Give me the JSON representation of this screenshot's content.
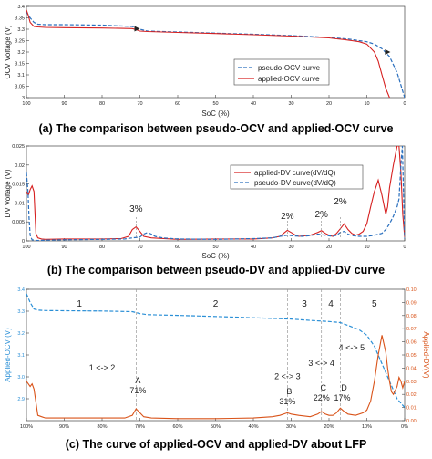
{
  "colors": {
    "applied": "#d62020",
    "pseudo": "#2a6fbe",
    "dv_orange": "#d95319",
    "ocv_blue": "#2a8fd6",
    "zone_line": "#999999",
    "axis": "#333333"
  },
  "captions": {
    "a": "(a) The comparison between pseudo-OCV and applied-OCV curve",
    "b": "(b) The comparison between pseudo-DV and applied-DV curve",
    "c": "(c) The curve of applied-OCV and applied-DV about LFP"
  },
  "chart_data": [
    {
      "id": "a",
      "type": "line",
      "xlabel": "SoC (%)",
      "ylabel": "OCV Voltage (V)",
      "x_reversed": true,
      "xlim": [
        100,
        0
      ],
      "ylim": [
        3.0,
        3.4
      ],
      "xticks": [
        "100",
        "90",
        "80",
        "70",
        "60",
        "50",
        "40",
        "30",
        "20",
        "10",
        "0"
      ],
      "xtick_values": [
        100,
        90,
        80,
        70,
        60,
        50,
        40,
        30,
        20,
        10,
        0
      ],
      "yticks": [
        "3.4",
        "3.35",
        "3.3",
        "3.25",
        "3.2",
        "3.15",
        "3.1",
        "3.05",
        "3"
      ],
      "ytick_values": [
        3.4,
        3.35,
        3.3,
        3.25,
        3.2,
        3.15,
        3.1,
        3.05,
        3.0
      ],
      "legend_position": "bottom-right",
      "series": [
        {
          "name": "pseudo-OCV curve",
          "style": "dashed",
          "color": "#2a6fbe",
          "x": [
            100,
            99,
            98,
            97,
            95,
            90,
            80,
            72,
            70,
            68,
            60,
            50,
            40,
            30,
            25,
            20,
            15,
            10,
            8,
            6,
            4,
            2,
            0
          ],
          "y": [
            3.375,
            3.35,
            3.33,
            3.322,
            3.32,
            3.32,
            3.318,
            3.312,
            3.3,
            3.292,
            3.288,
            3.283,
            3.278,
            3.272,
            3.268,
            3.264,
            3.257,
            3.245,
            3.235,
            3.215,
            3.18,
            3.11,
            3.0
          ]
        },
        {
          "name": "applied-OCV curve",
          "style": "solid",
          "color": "#d62020",
          "x": [
            100,
            99.5,
            99,
            98,
            97,
            95,
            90,
            80,
            72,
            71,
            70,
            68,
            60,
            50,
            40,
            30,
            25,
            20,
            18,
            16,
            14,
            12,
            10,
            8,
            7,
            6,
            5,
            4
          ],
          "y": [
            3.385,
            3.36,
            3.33,
            3.312,
            3.31,
            3.308,
            3.307,
            3.305,
            3.303,
            3.298,
            3.292,
            3.29,
            3.286,
            3.281,
            3.276,
            3.27,
            3.266,
            3.262,
            3.258,
            3.255,
            3.25,
            3.245,
            3.235,
            3.2,
            3.16,
            3.1,
            3.04,
            3.0
          ]
        }
      ]
    },
    {
      "id": "b",
      "type": "line",
      "xlabel": "SoC (%)",
      "ylabel": "DV Voltage (V)",
      "x_reversed": true,
      "xlim": [
        100,
        0
      ],
      "ylim": [
        0,
        0.025
      ],
      "xticks": [
        "100",
        "90",
        "80",
        "70",
        "60",
        "50",
        "40",
        "30",
        "20",
        "10",
        "0"
      ],
      "xtick_values": [
        100,
        90,
        80,
        70,
        60,
        50,
        40,
        30,
        20,
        10,
        0
      ],
      "yticks": [
        "0.025",
        "0.02",
        "0.015",
        "0.01",
        "0.005",
        "0"
      ],
      "ytick_values": [
        0.025,
        0.02,
        0.015,
        0.01,
        0.005,
        0
      ],
      "legend_position": "top-right",
      "annotations": [
        {
          "text": "3%",
          "x": 71
        },
        {
          "text": "2%",
          "x": 31
        },
        {
          "text": "2%",
          "x": 22
        },
        {
          "text": "2%",
          "x": 17
        }
      ],
      "series": [
        {
          "name": "applied-DV curve(dV/dQ)",
          "style": "solid",
          "color": "#d62020",
          "x": [
            100,
            99.5,
            99,
            98.5,
            98,
            97.5,
            97,
            96,
            95,
            90,
            80,
            75,
            73,
            72,
            71,
            70,
            69,
            67,
            60,
            50,
            40,
            35,
            33,
            32,
            31,
            30,
            29,
            28,
            25,
            23,
            22,
            21,
            20,
            19,
            18,
            17,
            16,
            15,
            14,
            13,
            12,
            11,
            10,
            9,
            8,
            7,
            6,
            5,
            4.5,
            4,
            3,
            2,
            1.5,
            1,
            0.5,
            0
          ],
          "y": [
            0.013,
            0.012,
            0.0135,
            0.0145,
            0.013,
            0.002,
            0.0008,
            0.0005,
            0.0004,
            0.0005,
            0.0005,
            0.0006,
            0.0012,
            0.003,
            0.0037,
            0.0025,
            0.0012,
            0.0008,
            0.0004,
            0.0005,
            0.0005,
            0.0008,
            0.0012,
            0.002,
            0.0028,
            0.0022,
            0.0016,
            0.0012,
            0.0015,
            0.0022,
            0.0027,
            0.002,
            0.0015,
            0.0012,
            0.002,
            0.0032,
            0.0045,
            0.003,
            0.002,
            0.0015,
            0.0018,
            0.0025,
            0.0045,
            0.009,
            0.013,
            0.016,
            0.012,
            0.007,
            0.009,
            0.014,
            0.02,
            0.025,
            0.025,
            0.018,
            0.007,
            0.001
          ]
        },
        {
          "name": "pseudo-DV curve(dV/dQ)",
          "style": "dashed",
          "color": "#2a6fbe",
          "x": [
            100,
            99.6,
            99.3,
            99,
            98.5,
            98,
            97,
            95,
            90,
            80,
            74,
            72,
            70,
            69,
            68,
            67,
            66,
            64,
            60,
            50,
            40,
            35,
            33,
            31,
            29,
            27,
            25,
            23,
            21,
            19,
            18,
            17,
            16,
            15,
            14,
            12,
            10,
            8,
            6,
            5,
            4,
            3,
            2,
            1.5,
            1,
            0.6,
            0.3,
            0
          ],
          "y": [
            0.018,
            0.013,
            0.006,
            0.0015,
            0.0003,
            0.0002,
            0.0001,
            0.0002,
            0.0003,
            0.0004,
            0.0005,
            0.0008,
            0.001,
            0.0018,
            0.0022,
            0.0018,
            0.0012,
            0.0008,
            0.0005,
            0.0004,
            0.0006,
            0.0008,
            0.0012,
            0.0015,
            0.0013,
            0.0012,
            0.0014,
            0.0018,
            0.0015,
            0.0012,
            0.0015,
            0.0022,
            0.0025,
            0.0018,
            0.0014,
            0.0012,
            0.0012,
            0.0015,
            0.002,
            0.003,
            0.0045,
            0.0065,
            0.009,
            0.011,
            0.02,
            0.025,
            0.012,
            0.0005
          ]
        }
      ]
    },
    {
      "id": "c",
      "type": "line",
      "xlabel": "",
      "ylabel": "Applied-OCV (V)",
      "ylabel_right": "Applied-DV(V)",
      "x_reversed": true,
      "xlim": [
        100,
        0
      ],
      "ylim": [
        2.8,
        3.4
      ],
      "ylim_right": [
        0,
        0.1
      ],
      "xticks": [
        "100%",
        "90%",
        "80%",
        "70%",
        "60%",
        "50%",
        "40%",
        "30%",
        "20%",
        "10%",
        "0%"
      ],
      "xtick_values": [
        100,
        90,
        80,
        70,
        60,
        50,
        40,
        30,
        20,
        10,
        0
      ],
      "yticks": [
        "3.4",
        "3.3",
        "3.2",
        "3.1",
        "3.0",
        "2.9"
      ],
      "ytick_values": [
        3.4,
        3.3,
        3.2,
        3.1,
        3.0,
        2.9
      ],
      "yticks_right": [
        "0.10",
        "0.09",
        "0.08",
        "0.07",
        "0.06",
        "0.05",
        "0.04",
        "0.03",
        "0.02",
        "0.01",
        "0.00"
      ],
      "ytick_values_right": [
        0.1,
        0.09,
        0.08,
        0.07,
        0.06,
        0.05,
        0.04,
        0.03,
        0.02,
        0.01,
        0
      ],
      "zone_lines": [
        71,
        31,
        22,
        17
      ],
      "zones": [
        {
          "label": "1",
          "x": 86
        },
        {
          "label": "2",
          "x": 50
        },
        {
          "label": "3",
          "x": 26.5
        },
        {
          "label": "4",
          "x": 19.5
        },
        {
          "label": "5",
          "x": 8
        }
      ],
      "transitions": [
        {
          "text": "1 <-> 2",
          "x": 80,
          "y": 3.03
        },
        {
          "text": "2 <-> 3",
          "x": 31,
          "y": 2.99
        },
        {
          "text": "3 <-> 4",
          "x": 22,
          "y": 3.05
        },
        {
          "text": "4 <-> 5",
          "x": 14,
          "y": 3.12
        }
      ],
      "points": [
        {
          "letter": "A",
          "pct": "71%",
          "x": 71
        },
        {
          "letter": "B",
          "pct": "31%",
          "x": 31
        },
        {
          "letter": "C",
          "pct": "22%",
          "x": 22
        },
        {
          "letter": "D",
          "pct": "17%",
          "x": 17
        }
      ],
      "series": [
        {
          "name": "Applied-OCV",
          "axis": "left",
          "style": "dashed",
          "color": "#2a8fd6",
          "x": [
            100,
            99,
            98,
            97,
            95,
            90,
            80,
            72,
            70,
            68,
            60,
            50,
            40,
            30,
            25,
            20,
            17,
            15,
            12,
            10,
            8,
            6,
            4,
            3,
            2,
            1,
            0
          ],
          "y": [
            3.38,
            3.34,
            3.31,
            3.305,
            3.303,
            3.302,
            3.301,
            3.298,
            3.289,
            3.284,
            3.281,
            3.276,
            3.27,
            3.264,
            3.258,
            3.253,
            3.248,
            3.235,
            3.215,
            3.19,
            3.14,
            3.06,
            2.98,
            2.94,
            2.9,
            2.88,
            2.86
          ]
        },
        {
          "name": "Applied-DV",
          "axis": "right",
          "style": "solid",
          "color": "#d95319",
          "x": [
            100,
            99.5,
            99,
            98.5,
            98,
            97,
            96,
            95,
            90,
            80,
            74,
            72,
            71,
            70,
            69,
            67,
            60,
            50,
            40,
            35,
            33,
            31,
            30,
            28,
            25,
            23,
            22,
            21,
            20,
            19,
            18,
            17,
            16,
            15,
            13,
            11,
            10,
            9,
            8,
            7,
            6,
            5,
            4.5,
            4,
            3.5,
            3,
            2,
            1.5,
            1,
            0.5,
            0
          ],
          "y": [
            0.03,
            0.028,
            0.026,
            0.028,
            0.024,
            0.004,
            0.003,
            0.002,
            0.002,
            0.002,
            0.002,
            0.004,
            0.009,
            0.006,
            0.003,
            0.002,
            0.0015,
            0.0015,
            0.002,
            0.003,
            0.004,
            0.006,
            0.005,
            0.004,
            0.003,
            0.005,
            0.007,
            0.005,
            0.004,
            0.004,
            0.006,
            0.0095,
            0.007,
            0.005,
            0.004,
            0.006,
            0.008,
            0.015,
            0.03,
            0.05,
            0.065,
            0.052,
            0.04,
            0.03,
            0.022,
            0.02,
            0.026,
            0.033,
            0.03,
            0.025,
            0.03
          ]
        }
      ]
    }
  ]
}
